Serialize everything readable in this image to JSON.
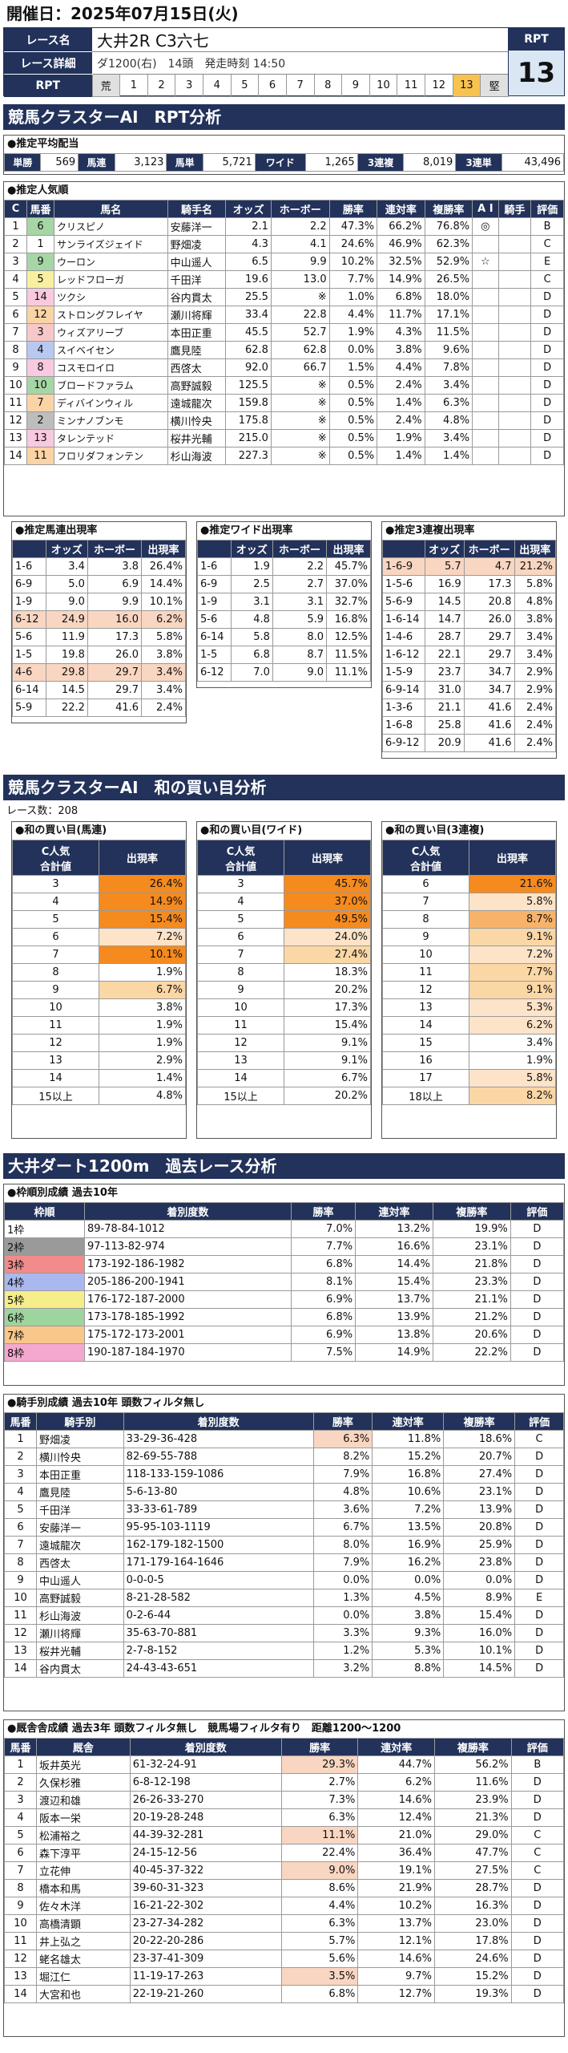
{
  "header": {
    "date": "開催日：2025年07月15日(火)"
  },
  "race": {
    "name_label": "レース名",
    "name": "大井2R C3六七",
    "detail_label": "レース詳細",
    "detail": "ダ1200(右)　14頭　発走時刻 14:50",
    "rpt_label": "RPT",
    "conds": [
      "荒",
      "1",
      "2",
      "3",
      "4",
      "5",
      "6",
      "7",
      "8",
      "9",
      "10",
      "11",
      "12",
      "13",
      "堅"
    ],
    "rpt_box_label": "RPT",
    "rpt_value": "13"
  },
  "sec1": {
    "title": "競馬クラスターAI　RPT分析"
  },
  "payout": {
    "title": "●推定平均配当",
    "items": [
      [
        "単勝",
        "569"
      ],
      [
        "馬連",
        "3,123"
      ],
      [
        "馬単",
        "5,721"
      ],
      [
        "ワイド",
        "1,265"
      ],
      [
        "3連複",
        "8,019"
      ],
      [
        "3連単",
        "43,496"
      ]
    ]
  },
  "pop": {
    "title": "●推定人気順",
    "headers": [
      "C",
      "馬番",
      "馬名",
      "騎手名",
      "オッズ",
      "ホーボー",
      "勝率",
      "連対率",
      "複勝率",
      "A I",
      "騎手",
      "評価"
    ],
    "rows": [
      [
        "1",
        "6",
        "クリスピノ",
        "安藤洋一",
        "2.1",
        "2.2",
        "47.3%",
        "66.2%",
        "76.8%",
        "◎",
        "",
        "B"
      ],
      [
        "2",
        "1",
        "サンライズジェイド",
        "野畑凌",
        "4.3",
        "4.1",
        "24.6%",
        "46.9%",
        "62.3%",
        "",
        "",
        "C"
      ],
      [
        "3",
        "9",
        "ウーロン",
        "中山遥人",
        "6.5",
        "9.9",
        "10.2%",
        "32.5%",
        "52.9%",
        "☆",
        "",
        "E"
      ],
      [
        "4",
        "5",
        "レッドフローガ",
        "千田洋",
        "19.6",
        "13.0",
        "7.7%",
        "14.9%",
        "26.5%",
        "",
        "",
        "C"
      ],
      [
        "5",
        "14",
        "ツクシ",
        "谷内貫太",
        "25.5",
        "※",
        "1.0%",
        "6.8%",
        "18.0%",
        "",
        "",
        "D"
      ],
      [
        "6",
        "12",
        "ストロングフレイヤ",
        "瀬川将輝",
        "33.4",
        "22.8",
        "4.4%",
        "11.7%",
        "17.1%",
        "",
        "",
        "D"
      ],
      [
        "7",
        "3",
        "ウィズアリーブ",
        "本田正重",
        "45.5",
        "52.7",
        "1.9%",
        "4.3%",
        "11.5%",
        "",
        "",
        "D"
      ],
      [
        "8",
        "4",
        "スイベイセン",
        "鷹見陸",
        "62.8",
        "62.8",
        "0.0%",
        "3.8%",
        "9.6%",
        "",
        "",
        "D"
      ],
      [
        "9",
        "8",
        "コスモロイロ",
        "西啓太",
        "92.0",
        "66.7",
        "1.5%",
        "4.4%",
        "7.8%",
        "",
        "",
        "D"
      ],
      [
        "10",
        "10",
        "ブロードファラム",
        "高野誠毅",
        "125.5",
        "※",
        "0.5%",
        "2.4%",
        "3.4%",
        "",
        "",
        "D"
      ],
      [
        "11",
        "7",
        "ディバインウィル",
        "遠城龍次",
        "159.8",
        "※",
        "0.5%",
        "1.4%",
        "6.3%",
        "",
        "",
        "D"
      ],
      [
        "12",
        "2",
        "ミンナノブンモ",
        "横川怜央",
        "175.8",
        "※",
        "0.5%",
        "2.4%",
        "4.8%",
        "",
        "",
        "D"
      ],
      [
        "13",
        "13",
        "タレンテッド",
        "桜井光輔",
        "215.0",
        "※",
        "0.5%",
        "1.9%",
        "3.4%",
        "",
        "",
        "D"
      ],
      [
        "14",
        "11",
        "フロリダフォンテン",
        "杉山海波",
        "227.3",
        "※",
        "0.5%",
        "1.4%",
        "1.4%",
        "",
        "",
        "D"
      ]
    ]
  },
  "est_uma": {
    "title": "●推定馬連出現率",
    "headers": [
      "",
      "オッズ",
      "ホーボー",
      "出現率"
    ],
    "rows": [
      [
        "1-6",
        "3.4",
        "3.8",
        "26.4%"
      ],
      [
        "6-9",
        "5.0",
        "6.9",
        "14.4%"
      ],
      [
        "1-9",
        "9.0",
        "9.9",
        "10.1%"
      ],
      [
        "6-12",
        "24.9",
        "16.0",
        "6.2%"
      ],
      [
        "5-6",
        "11.9",
        "17.3",
        "5.8%"
      ],
      [
        "1-5",
        "19.8",
        "26.0",
        "3.8%"
      ],
      [
        "4-6",
        "29.8",
        "29.7",
        "3.4%"
      ],
      [
        "6-14",
        "14.5",
        "29.7",
        "3.4%"
      ],
      [
        "5-9",
        "22.2",
        "41.6",
        "2.4%"
      ]
    ]
  },
  "est_wide": {
    "title": "●推定ワイド出現率",
    "headers": [
      "",
      "オッズ",
      "ホーボー",
      "出現率"
    ],
    "rows": [
      [
        "1-6",
        "1.9",
        "2.2",
        "45.7%"
      ],
      [
        "6-9",
        "2.5",
        "2.7",
        "37.0%"
      ],
      [
        "1-9",
        "3.1",
        "3.1",
        "32.7%"
      ],
      [
        "5-6",
        "4.8",
        "5.9",
        "16.8%"
      ],
      [
        "6-14",
        "5.8",
        "8.0",
        "12.5%"
      ],
      [
        "1-5",
        "6.8",
        "8.7",
        "11.5%"
      ],
      [
        "6-12",
        "7.0",
        "9.0",
        "11.1%"
      ]
    ]
  },
  "est_trio": {
    "title": "●推定3連複出現率",
    "headers": [
      "",
      "オッズ",
      "ホーボー",
      "出現率"
    ],
    "rows": [
      [
        "1-6-9",
        "5.7",
        "4.7",
        "21.2%"
      ],
      [
        "1-5-6",
        "16.9",
        "17.3",
        "5.8%"
      ],
      [
        "5-6-9",
        "14.5",
        "20.8",
        "4.8%"
      ],
      [
        "1-6-14",
        "14.7",
        "26.0",
        "3.8%"
      ],
      [
        "1-4-6",
        "28.7",
        "29.7",
        "3.4%"
      ],
      [
        "1-6-12",
        "22.1",
        "29.7",
        "3.4%"
      ],
      [
        "1-5-9",
        "23.7",
        "34.7",
        "2.9%"
      ],
      [
        "6-9-14",
        "31.0",
        "34.7",
        "2.9%"
      ],
      [
        "1-3-6",
        "21.1",
        "41.6",
        "2.4%"
      ],
      [
        "1-6-8",
        "25.8",
        "41.6",
        "2.4%"
      ],
      [
        "6-9-12",
        "20.9",
        "41.6",
        "2.4%"
      ]
    ]
  },
  "sec2": {
    "title": "競馬クラスターAI　和の買い目分析",
    "count": "レース数：208"
  },
  "wa_uma": {
    "title": "●和の買い目(馬連)",
    "h1": "C人気\n合計値",
    "h2": "出現率",
    "rows": [
      [
        "3",
        "26.4%"
      ],
      [
        "4",
        "14.9%"
      ],
      [
        "5",
        "15.4%"
      ],
      [
        "6",
        "7.2%"
      ],
      [
        "7",
        "10.1%"
      ],
      [
        "8",
        "1.9%"
      ],
      [
        "9",
        "6.7%"
      ],
      [
        "10",
        "3.8%"
      ],
      [
        "11",
        "1.9%"
      ],
      [
        "12",
        "1.9%"
      ],
      [
        "13",
        "2.9%"
      ],
      [
        "14",
        "1.4%"
      ],
      [
        "15以上",
        "4.8%"
      ]
    ]
  },
  "wa_wide": {
    "title": "●和の買い目(ワイド)",
    "h1": "C人気\n合計値",
    "h2": "出現率",
    "rows": [
      [
        "3",
        "45.7%"
      ],
      [
        "4",
        "37.0%"
      ],
      [
        "5",
        "49.5%"
      ],
      [
        "6",
        "24.0%"
      ],
      [
        "7",
        "27.4%"
      ],
      [
        "8",
        "18.3%"
      ],
      [
        "9",
        "20.2%"
      ],
      [
        "10",
        "17.3%"
      ],
      [
        "11",
        "15.4%"
      ],
      [
        "12",
        "9.1%"
      ],
      [
        "13",
        "9.1%"
      ],
      [
        "14",
        "6.7%"
      ],
      [
        "15以上",
        "20.2%"
      ]
    ]
  },
  "wa_trio": {
    "title": "●和の買い目(3連複)",
    "h1": "C人気\n合計値",
    "h2": "出現率",
    "rows": [
      [
        "6",
        "21.6%"
      ],
      [
        "7",
        "5.8%"
      ],
      [
        "8",
        "8.7%"
      ],
      [
        "9",
        "9.1%"
      ],
      [
        "10",
        "7.2%"
      ],
      [
        "11",
        "7.7%"
      ],
      [
        "12",
        "9.1%"
      ],
      [
        "13",
        "5.3%"
      ],
      [
        "14",
        "6.2%"
      ],
      [
        "15",
        "3.4%"
      ],
      [
        "16",
        "1.9%"
      ],
      [
        "17",
        "5.8%"
      ],
      [
        "18以上",
        "8.2%"
      ]
    ]
  },
  "sec3": {
    "title": "大井ダート1200m　過去レース分析"
  },
  "waku": {
    "title": "●枠順別成績 過去10年",
    "headers": [
      "枠順",
      "着別度数",
      "勝率",
      "連対率",
      "複勝率",
      "評価"
    ],
    "rows": [
      [
        "1枠",
        "89-78-84-1012",
        "7.0%",
        "13.2%",
        "19.9%",
        "D"
      ],
      [
        "2枠",
        "97-113-82-974",
        "7.7%",
        "16.6%",
        "23.1%",
        "D"
      ],
      [
        "3枠",
        "173-192-186-1982",
        "6.8%",
        "14.4%",
        "21.8%",
        "D"
      ],
      [
        "4枠",
        "205-186-200-1941",
        "8.1%",
        "15.4%",
        "23.3%",
        "D"
      ],
      [
        "5枠",
        "176-172-187-2000",
        "6.9%",
        "13.7%",
        "21.1%",
        "D"
      ],
      [
        "6枠",
        "173-178-185-1992",
        "6.8%",
        "13.9%",
        "21.2%",
        "D"
      ],
      [
        "7枠",
        "175-172-173-2001",
        "6.9%",
        "13.8%",
        "20.6%",
        "D"
      ],
      [
        "8枠",
        "190-187-184-1970",
        "7.5%",
        "14.9%",
        "22.2%",
        "D"
      ]
    ]
  },
  "jockey": {
    "title": "●騎手別成績 過去10年 頭数フィルタ無し",
    "headers": [
      "馬番",
      "騎手別",
      "着別度数",
      "勝率",
      "連対率",
      "複勝率",
      "評価"
    ],
    "rows": [
      [
        "1",
        "野畑凌",
        "33-29-36-428",
        "6.3%",
        "11.8%",
        "18.6%",
        "C"
      ],
      [
        "2",
        "横川怜央",
        "82-69-55-788",
        "8.2%",
        "15.2%",
        "20.7%",
        "D"
      ],
      [
        "3",
        "本田正重",
        "118-133-159-1086",
        "7.9%",
        "16.8%",
        "27.4%",
        "D"
      ],
      [
        "4",
        "鷹見陸",
        "5-6-13-80",
        "4.8%",
        "10.6%",
        "23.1%",
        "D"
      ],
      [
        "5",
        "千田洋",
        "33-33-61-789",
        "3.6%",
        "7.2%",
        "13.9%",
        "D"
      ],
      [
        "6",
        "安藤洋一",
        "95-95-103-1119",
        "6.7%",
        "13.5%",
        "20.8%",
        "D"
      ],
      [
        "7",
        "遠城龍次",
        "162-179-182-1500",
        "8.0%",
        "16.9%",
        "25.9%",
        "D"
      ],
      [
        "8",
        "西啓太",
        "171-179-164-1646",
        "7.9%",
        "16.2%",
        "23.8%",
        "D"
      ],
      [
        "9",
        "中山遥人",
        "0-0-0-5",
        "0.0%",
        "0.0%",
        "0.0%",
        "D"
      ],
      [
        "10",
        "高野誠毅",
        "8-21-28-582",
        "1.3%",
        "4.5%",
        "8.9%",
        "E"
      ],
      [
        "11",
        "杉山海波",
        "0-2-6-44",
        "0.0%",
        "3.8%",
        "15.4%",
        "D"
      ],
      [
        "12",
        "瀬川将輝",
        "35-63-70-881",
        "3.3%",
        "9.3%",
        "16.0%",
        "D"
      ],
      [
        "13",
        "桜井光輔",
        "2-7-8-152",
        "1.2%",
        "5.3%",
        "10.1%",
        "D"
      ],
      [
        "14",
        "谷内貫太",
        "24-43-43-651",
        "3.2%",
        "8.8%",
        "14.5%",
        "D"
      ]
    ]
  },
  "bloodline": {
    "title": "●厩舎舎成績 過去3年 頭数フィルタ無し　競馬場フィルタ有り　距離1200～1200",
    "headers": [
      "馬番",
      "厩舎",
      "着別度数",
      "勝率",
      "連対率",
      "複勝率",
      "評価"
    ],
    "rows": [
      [
        "1",
        "坂井英光",
        "61-32-24-91",
        "29.3%",
        "44.7%",
        "56.2%",
        "B"
      ],
      [
        "2",
        "久保杉雅",
        "6-8-12-198",
        "2.7%",
        "6.2%",
        "11.6%",
        "D"
      ],
      [
        "3",
        "渡辺和雄",
        "26-26-33-270",
        "7.3%",
        "14.6%",
        "23.9%",
        "D"
      ],
      [
        "4",
        "阪本一栄",
        "20-19-28-248",
        "6.3%",
        "12.4%",
        "21.3%",
        "D"
      ],
      [
        "5",
        "松浦裕之",
        "44-39-32-281",
        "11.1%",
        "21.0%",
        "29.0%",
        "C"
      ],
      [
        "6",
        "森下淳平",
        "24-15-12-56",
        "22.4%",
        "36.4%",
        "47.7%",
        "C"
      ],
      [
        "7",
        "立花伸",
        "40-45-37-322",
        "9.0%",
        "19.1%",
        "27.5%",
        "C"
      ],
      [
        "8",
        "橋本和馬",
        "39-60-31-323",
        "8.6%",
        "21.9%",
        "28.7%",
        "D"
      ],
      [
        "9",
        "佐々木洋",
        "16-21-22-302",
        "4.4%",
        "10.2%",
        "16.3%",
        "D"
      ],
      [
        "10",
        "高橋清顕",
        "23-27-34-282",
        "6.3%",
        "13.7%",
        "23.0%",
        "D"
      ],
      [
        "11",
        "井上弘之",
        "20-22-20-286",
        "5.7%",
        "12.1%",
        "17.8%",
        "D"
      ],
      [
        "12",
        "蛯名雄太",
        "23-37-41-309",
        "5.6%",
        "14.6%",
        "24.6%",
        "D"
      ],
      [
        "13",
        "堀江仁",
        "11-19-17-263",
        "3.5%",
        "9.7%",
        "15.2%",
        "D"
      ],
      [
        "14",
        "大宮和也",
        "22-19-21-260",
        "6.8%",
        "12.7%",
        "19.3%",
        "D"
      ]
    ]
  }
}
